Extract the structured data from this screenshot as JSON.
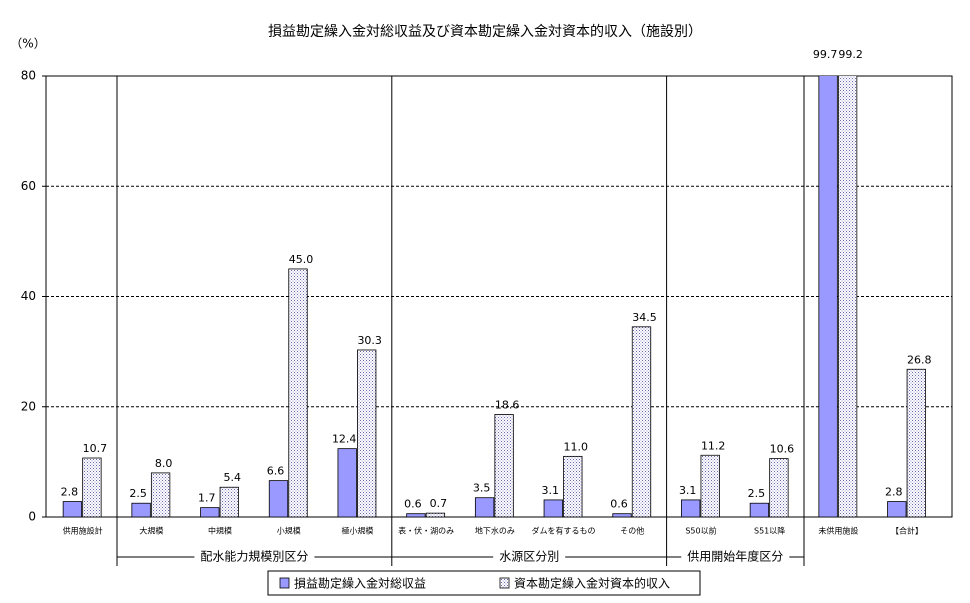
{
  "chart_data": {
    "type": "bar",
    "title": "損益勘定繰入金対総収益及び資本勘定繰入金対資本的収入（施設別）",
    "y_label": "（%）",
    "categories": [
      "供用施設計",
      "大規模",
      "中規模",
      "小規模",
      "極小規模",
      "表・伏・湖のみ",
      "地下水のみ",
      "ダムを有するもの",
      "その他",
      "S50以前",
      "S51以降",
      "未供用施設",
      "【合計】"
    ],
    "groups": [
      "配水能力規模別区分",
      "水源区分別",
      "供用開始年度区分"
    ],
    "series": [
      {
        "name": "損益勘定繰入金対総収益",
        "color": "#9999ff",
        "values": [
          2.8,
          2.5,
          1.7,
          6.6,
          12.4,
          0.6,
          3.5,
          3.1,
          0.6,
          3.1,
          2.5,
          99.7,
          2.8
        ],
        "value_labels": [
          "2.8",
          "2.5",
          "1.7",
          "6.6",
          "12.4",
          "0.6",
          "3.5",
          "3.1",
          "0.6",
          "3.1",
          "2.5",
          "99.7",
          "2.8"
        ]
      },
      {
        "name": "資本勘定繰入金対資本的収入",
        "color": "#ccccff",
        "pattern": "dots",
        "values": [
          10.7,
          8.0,
          5.4,
          45.0,
          30.3,
          0.7,
          18.6,
          11.0,
          34.5,
          11.2,
          10.6,
          99.2,
          26.8
        ],
        "value_labels": [
          "10.7",
          "8.0",
          "5.4",
          "45.0",
          "30.3",
          "0.7",
          "18.6",
          "11.0",
          "34.5",
          "11.2",
          "10.6",
          "99.2",
          "26.8"
        ]
      }
    ],
    "ylim": [
      0,
      80
    ],
    "yticks": [
      0,
      20,
      40,
      60,
      80
    ],
    "grid": true,
    "legend": "bottom"
  }
}
